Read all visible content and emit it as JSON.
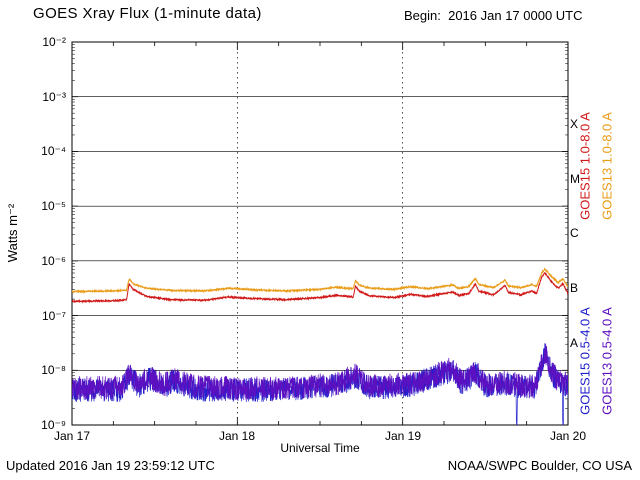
{
  "header": {
    "title": "GOES Xray Flux (1-minute data)",
    "begin": "Begin:  2016 Jan 17 0000 UTC"
  },
  "footer": {
    "updated": "Updated 2016 Jan 19 23:59:12 UTC",
    "credit": "NOAA/SWPC Boulder, CO USA"
  },
  "chart_data": {
    "type": "line",
    "title": "GOES Xray Flux (1-minute data)",
    "xlabel": "Universal Time",
    "ylabel": "Watts m⁻²",
    "x_unit": "days since 2016 Jan 17 0000 UTC",
    "xlim": [
      0,
      3
    ],
    "ylog_range": [
      -9,
      -2
    ],
    "y_scale": "log10 Watts per square meter",
    "y_tick_labels": [
      "10⁻²",
      "10⁻³",
      "10⁻⁴",
      "10⁻⁵",
      "10⁻⁶",
      "10⁻⁷",
      "10⁻⁸",
      "10⁻⁹"
    ],
    "x_ticks": [
      {
        "day": 0,
        "label": "Jan 17"
      },
      {
        "day": 1,
        "label": "Jan 18"
      },
      {
        "day": 2,
        "label": "Jan 19"
      },
      {
        "day": 3,
        "label": "Jan 20"
      }
    ],
    "flare_classes": [
      {
        "label": "X",
        "log_center": -3.5
      },
      {
        "label": "M",
        "log_center": -4.5
      },
      {
        "label": "C",
        "log_center": -5.5
      },
      {
        "label": "B",
        "log_center": -6.5
      },
      {
        "label": "A",
        "log_center": -7.5
      }
    ],
    "grid": {
      "h_decades": [
        -3,
        -4,
        -5,
        -6,
        -7,
        -8
      ],
      "v_dashed_days": [
        1,
        2
      ]
    },
    "series": [
      {
        "name": "GOES15 1.0-8.0 A",
        "color": "#d01818",
        "noise_dex": 0.012,
        "points": [
          [
            0.0,
            -6.74
          ],
          [
            0.25,
            -6.73
          ],
          [
            0.33,
            -6.71
          ],
          [
            0.345,
            -6.42
          ],
          [
            0.37,
            -6.52
          ],
          [
            0.45,
            -6.65
          ],
          [
            0.6,
            -6.71
          ],
          [
            0.8,
            -6.72
          ],
          [
            0.95,
            -6.66
          ],
          [
            1.1,
            -6.69
          ],
          [
            1.3,
            -6.71
          ],
          [
            1.5,
            -6.67
          ],
          [
            1.6,
            -6.63
          ],
          [
            1.7,
            -6.66
          ],
          [
            1.715,
            -6.46
          ],
          [
            1.735,
            -6.55
          ],
          [
            1.8,
            -6.64
          ],
          [
            1.95,
            -6.67
          ],
          [
            2.05,
            -6.61
          ],
          [
            2.15,
            -6.65
          ],
          [
            2.3,
            -6.57
          ],
          [
            2.34,
            -6.63
          ],
          [
            2.4,
            -6.6
          ],
          [
            2.44,
            -6.42
          ],
          [
            2.46,
            -6.55
          ],
          [
            2.55,
            -6.62
          ],
          [
            2.62,
            -6.45
          ],
          [
            2.64,
            -6.58
          ],
          [
            2.72,
            -6.62
          ],
          [
            2.78,
            -6.55
          ],
          [
            2.81,
            -6.6
          ],
          [
            2.84,
            -6.3
          ],
          [
            2.86,
            -6.22
          ],
          [
            2.9,
            -6.38
          ],
          [
            2.94,
            -6.5
          ],
          [
            2.97,
            -6.42
          ],
          [
            3.0,
            -6.6
          ]
        ]
      },
      {
        "name": "GOES13 1.0-8.0 A",
        "color": "#e89c18",
        "noise_dex": 0.012,
        "points": [
          [
            0.0,
            -6.56
          ],
          [
            0.25,
            -6.55
          ],
          [
            0.33,
            -6.54
          ],
          [
            0.345,
            -6.33
          ],
          [
            0.37,
            -6.42
          ],
          [
            0.45,
            -6.5
          ],
          [
            0.6,
            -6.54
          ],
          [
            0.8,
            -6.55
          ],
          [
            0.95,
            -6.5
          ],
          [
            1.1,
            -6.53
          ],
          [
            1.3,
            -6.55
          ],
          [
            1.5,
            -6.52
          ],
          [
            1.6,
            -6.48
          ],
          [
            1.7,
            -6.51
          ],
          [
            1.715,
            -6.36
          ],
          [
            1.735,
            -6.44
          ],
          [
            1.8,
            -6.5
          ],
          [
            1.95,
            -6.52
          ],
          [
            2.05,
            -6.47
          ],
          [
            2.15,
            -6.51
          ],
          [
            2.3,
            -6.44
          ],
          [
            2.34,
            -6.5
          ],
          [
            2.4,
            -6.47
          ],
          [
            2.44,
            -6.32
          ],
          [
            2.46,
            -6.43
          ],
          [
            2.55,
            -6.49
          ],
          [
            2.62,
            -6.35
          ],
          [
            2.64,
            -6.46
          ],
          [
            2.72,
            -6.49
          ],
          [
            2.78,
            -6.43
          ],
          [
            2.81,
            -6.47
          ],
          [
            2.84,
            -6.22
          ],
          [
            2.86,
            -6.15
          ],
          [
            2.9,
            -6.28
          ],
          [
            2.94,
            -6.4
          ],
          [
            2.97,
            -6.33
          ],
          [
            3.0,
            -6.48
          ]
        ]
      },
      {
        "name": "GOES15 0.5-4.0 A",
        "color": "#2020cc",
        "noise_dex": 0.22,
        "points": [
          [
            0.0,
            -8.36
          ],
          [
            0.3,
            -8.36
          ],
          [
            0.345,
            -8.1
          ],
          [
            0.4,
            -8.3
          ],
          [
            0.47,
            -8.15
          ],
          [
            0.55,
            -8.3
          ],
          [
            0.62,
            -8.2
          ],
          [
            0.75,
            -8.35
          ],
          [
            1.0,
            -8.36
          ],
          [
            1.3,
            -8.36
          ],
          [
            1.6,
            -8.28
          ],
          [
            1.715,
            -8.12
          ],
          [
            1.8,
            -8.33
          ],
          [
            2.05,
            -8.28
          ],
          [
            2.3,
            -8.0
          ],
          [
            2.36,
            -8.25
          ],
          [
            2.44,
            -8.05
          ],
          [
            2.5,
            -8.28
          ],
          [
            2.6,
            -8.25
          ],
          [
            2.685,
            -8.3
          ],
          [
            2.69,
            -9.3
          ],
          [
            2.695,
            -8.3
          ],
          [
            2.8,
            -8.33
          ],
          [
            2.84,
            -7.9
          ],
          [
            2.86,
            -7.68
          ],
          [
            2.9,
            -8.05
          ],
          [
            2.94,
            -8.2
          ],
          [
            2.965,
            -8.25
          ],
          [
            2.97,
            -9.3
          ],
          [
            2.975,
            -8.25
          ],
          [
            3.0,
            -8.3
          ]
        ]
      },
      {
        "name": "GOES13 0.5-4.0 A",
        "color": "#5c10c0",
        "noise_dex": 0.22,
        "points": [
          [
            0.0,
            -8.32
          ],
          [
            0.3,
            -8.32
          ],
          [
            0.345,
            -8.06
          ],
          [
            0.4,
            -8.26
          ],
          [
            0.47,
            -8.12
          ],
          [
            0.55,
            -8.27
          ],
          [
            0.62,
            -8.17
          ],
          [
            0.75,
            -8.31
          ],
          [
            1.0,
            -8.33
          ],
          [
            1.3,
            -8.33
          ],
          [
            1.6,
            -8.25
          ],
          [
            1.715,
            -8.08
          ],
          [
            1.8,
            -8.3
          ],
          [
            2.05,
            -8.25
          ],
          [
            2.3,
            -7.97
          ],
          [
            2.36,
            -8.22
          ],
          [
            2.44,
            -8.02
          ],
          [
            2.5,
            -8.25
          ],
          [
            2.6,
            -8.22
          ],
          [
            2.8,
            -8.3
          ],
          [
            2.84,
            -7.88
          ],
          [
            2.86,
            -7.65
          ],
          [
            2.9,
            -8.02
          ],
          [
            2.94,
            -8.18
          ],
          [
            3.0,
            -8.27
          ]
        ]
      }
    ],
    "legend_position": "right-rotated",
    "grid_on": true
  }
}
